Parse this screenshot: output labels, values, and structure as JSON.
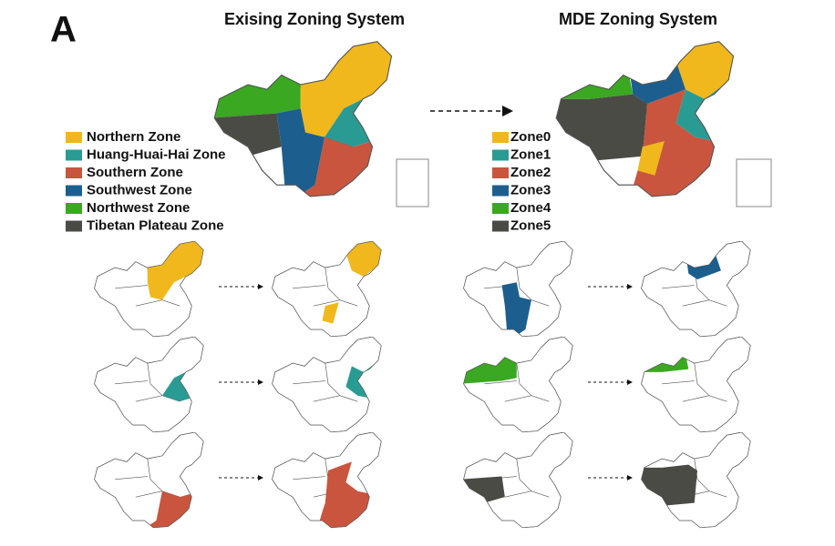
{
  "panel_label": "A",
  "maps": [
    {
      "title": "Exising Zoning System",
      "legend": [
        {
          "label": "Northern Zone",
          "color": "#f0b81c"
        },
        {
          "label": "Huang-Huai-Hai Zone",
          "color": "#2a9b92"
        },
        {
          "label": "Southern Zone",
          "color": "#c9553f"
        },
        {
          "label": "Southwest Zone",
          "color": "#1c5f8e"
        },
        {
          "label": "Northwest Zone",
          "color": "#3aa821"
        },
        {
          "label": "Tibetan Plateau Zone",
          "color": "#4b4b45"
        }
      ]
    },
    {
      "title": "MDE Zoning System",
      "legend": [
        {
          "label": "Zone0",
          "color": "#f0b81c"
        },
        {
          "label": "Zone1",
          "color": "#2a9b92"
        },
        {
          "label": "Zone2",
          "color": "#c9553f"
        },
        {
          "label": "Zone3",
          "color": "#1c5f8e"
        },
        {
          "label": "Zone4",
          "color": "#3aa821"
        },
        {
          "label": "Zone5",
          "color": "#4b4b45"
        }
      ]
    }
  ]
}
